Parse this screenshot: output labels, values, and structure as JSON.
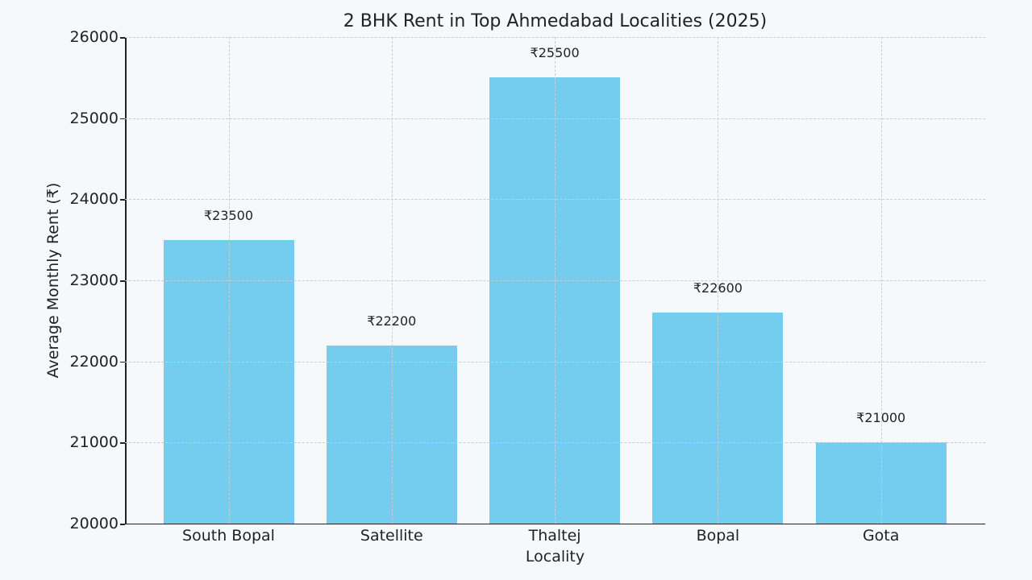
{
  "chart_data": {
    "type": "bar",
    "title": "2 BHK Rent in Top Ahmedabad Localities (2025)",
    "xlabel": "Locality",
    "ylabel": "Average Monthly Rent (₹)",
    "categories": [
      "South Bopal",
      "Satellite",
      "Thaltej",
      "Bopal",
      "Gota"
    ],
    "values": [
      23500,
      22200,
      25500,
      22600,
      21000
    ],
    "data_labels": [
      "₹23500",
      "₹22200",
      "₹25500",
      "₹22600",
      "₹21000"
    ],
    "ylim": [
      20000,
      26000
    ],
    "yticks": [
      20000,
      21000,
      22000,
      23000,
      24000,
      25000,
      26000
    ],
    "ytick_labels": [
      "20000",
      "21000",
      "22000",
      "23000",
      "24000",
      "25000",
      "26000"
    ],
    "grid": true,
    "grid_style": "dashed",
    "legend": false,
    "colors": {
      "bar": "#74cdee",
      "background": "#f5f9fc",
      "grid": "#c9cdd1",
      "axis": "#222222"
    }
  }
}
